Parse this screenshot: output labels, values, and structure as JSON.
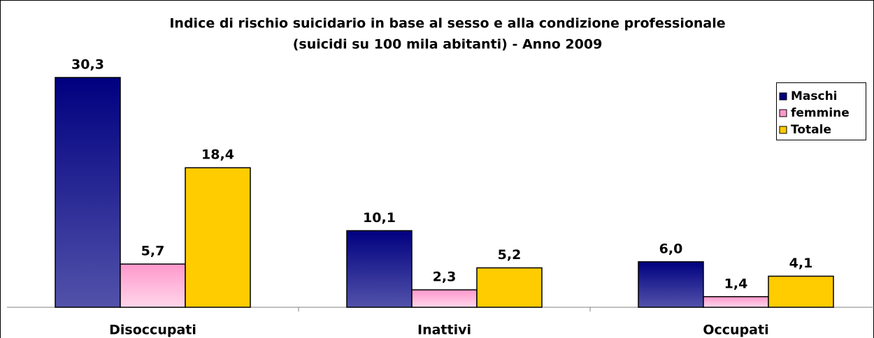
{
  "chart_data": {
    "type": "bar",
    "title": "Indice di rischio suicidario in base al sesso e alla condizione professionale",
    "subtitle": "(suicidi su 100 mila abitanti) - Anno 2009",
    "categories": [
      "Disoccupati",
      "Inattivi",
      "Occupati"
    ],
    "series": [
      {
        "name": "Maschi",
        "color": "#000080",
        "values": [
          30.3,
          10.1,
          6.0
        ],
        "value_labels": [
          "30,3",
          "10,1",
          "6,0"
        ]
      },
      {
        "name": "femmine",
        "color": "#ff99cc",
        "values": [
          5.7,
          2.3,
          1.4
        ],
        "value_labels": [
          "5,7",
          "2,3",
          "1,4"
        ]
      },
      {
        "name": "Totale",
        "color": "#ffcc00",
        "values": [
          18.4,
          5.2,
          4.1
        ],
        "value_labels": [
          "18,4",
          "5,2",
          "4,1"
        ]
      }
    ],
    "legend": "right"
  }
}
